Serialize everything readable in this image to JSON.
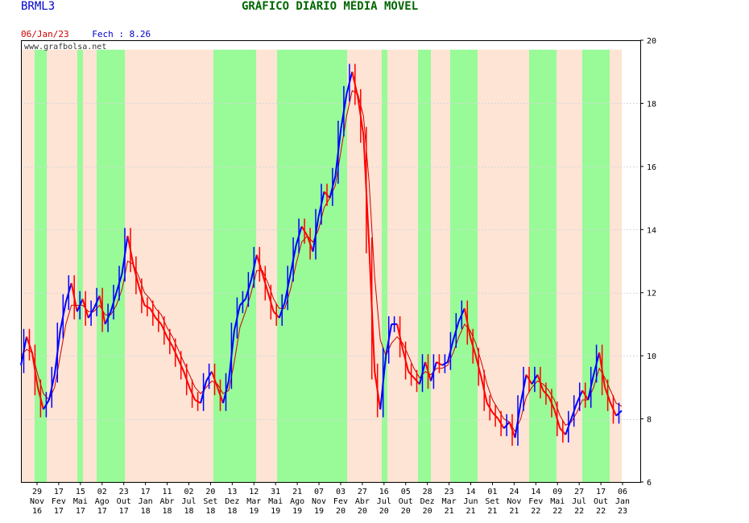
{
  "header": {
    "ticker": "BRML3",
    "title": "GRÁFICO DIÁRIO MÉDIA MÓVEL",
    "date": "06/Jan/23",
    "close_text": "Fech : 8.26",
    "watermark": "www.grafbolsa.net"
  },
  "colors": {
    "band_up": "#98fb98",
    "band_down": "#fde4d4",
    "price_up": "#0000ff",
    "price_down": "#ff0000",
    "ma_line": "#cc0000"
  },
  "chart_data": {
    "type": "line",
    "ylim": [
      6,
      20
    ],
    "yticks": [
      6,
      8,
      10,
      12,
      14,
      16,
      18,
      20
    ],
    "grid": true,
    "x_tick_labels": [
      {
        "day": "29",
        "mon": "Nov",
        "yr": "16"
      },
      {
        "day": "17",
        "mon": "Fev",
        "yr": "17"
      },
      {
        "day": "15",
        "mon": "Mai",
        "yr": "17"
      },
      {
        "day": "02",
        "mon": "Ago",
        "yr": "17"
      },
      {
        "day": "23",
        "mon": "Out",
        "yr": "17"
      },
      {
        "day": "17",
        "mon": "Jan",
        "yr": "18"
      },
      {
        "day": "11",
        "mon": "Abr",
        "yr": "18"
      },
      {
        "day": "02",
        "mon": "Jul",
        "yr": "18"
      },
      {
        "day": "20",
        "mon": "Set",
        "yr": "18"
      },
      {
        "day": "13",
        "mon": "Dez",
        "yr": "18"
      },
      {
        "day": "12",
        "mon": "Mar",
        "yr": "19"
      },
      {
        "day": "31",
        "mon": "Mai",
        "yr": "19"
      },
      {
        "day": "21",
        "mon": "Ago",
        "yr": "19"
      },
      {
        "day": "07",
        "mon": "Nov",
        "yr": "19"
      },
      {
        "day": "03",
        "mon": "Fev",
        "yr": "20"
      },
      {
        "day": "27",
        "mon": "Abr",
        "yr": "20"
      },
      {
        "day": "16",
        "mon": "Jul",
        "yr": "20"
      },
      {
        "day": "05",
        "mon": "Out",
        "yr": "20"
      },
      {
        "day": "28",
        "mon": "Dez",
        "yr": "20"
      },
      {
        "day": "23",
        "mon": "Mar",
        "yr": "21"
      },
      {
        "day": "14",
        "mon": "Jun",
        "yr": "21"
      },
      {
        "day": "01",
        "mon": "Set",
        "yr": "21"
      },
      {
        "day": "24",
        "mon": "Nov",
        "yr": "21"
      },
      {
        "day": "14",
        "mon": "Fev",
        "yr": "22"
      },
      {
        "day": "09",
        "mon": "Mai",
        "yr": "22"
      },
      {
        "day": "27",
        "mon": "Jul",
        "yr": "22"
      },
      {
        "day": "17",
        "mon": "Out",
        "yr": "22"
      },
      {
        "day": "06",
        "mon": "Jan",
        "yr": "23"
      }
    ],
    "regimes": [
      "down",
      "up",
      "down",
      "up",
      "down",
      "up",
      "down",
      "up",
      "down",
      "up",
      "down",
      "up",
      "down",
      "up",
      "down",
      "up",
      "down",
      "up",
      "down",
      "up",
      "down",
      "up",
      "down"
    ],
    "price": [
      9.7,
      10.6,
      10.1,
      9.0,
      8.3,
      8.6,
      9.4,
      10.8,
      11.7,
      12.3,
      11.4,
      11.8,
      11.2,
      11.5,
      11.9,
      11.0,
      11.4,
      12.0,
      12.6,
      13.8,
      12.9,
      12.2,
      11.6,
      11.5,
      11.2,
      11.0,
      10.6,
      10.3,
      9.9,
      9.5,
      9.0,
      8.6,
      8.5,
      9.2,
      9.5,
      9.0,
      8.5,
      9.2,
      10.8,
      11.6,
      11.8,
      12.4,
      13.2,
      12.6,
      12.0,
      11.4,
      11.2,
      11.7,
      12.6,
      13.5,
      14.1,
      13.8,
      13.3,
      14.4,
      15.2,
      15.0,
      15.7,
      17.2,
      18.3,
      19.0,
      18.2,
      17.0,
      13.5,
      9.5,
      8.3,
      10.0,
      11.0,
      11.0,
      10.2,
      9.5,
      9.3,
      9.1,
      9.8,
      9.2,
      9.8,
      9.7,
      9.8,
      10.5,
      11.1,
      11.5,
      10.6,
      10.0,
      9.3,
      8.5,
      8.2,
      8.0,
      7.7,
      7.9,
      7.4,
      8.5,
      9.4,
      9.1,
      9.4,
      8.9,
      8.7,
      8.3,
      7.7,
      7.5,
      8.0,
      8.5,
      8.9,
      8.6,
      9.4,
      10.1,
      9.0,
      8.5,
      8.1,
      8.26
    ],
    "ma": [
      10.0,
      10.2,
      10.1,
      9.4,
      8.8,
      8.6,
      9.0,
      10.0,
      11.0,
      11.6,
      11.6,
      11.6,
      11.4,
      11.4,
      11.6,
      11.3,
      11.3,
      11.6,
      12.1,
      13.0,
      12.9,
      12.5,
      12.0,
      11.8,
      11.5,
      11.3,
      10.9,
      10.6,
      10.2,
      9.8,
      9.4,
      9.0,
      8.8,
      9.0,
      9.2,
      9.1,
      8.8,
      8.9,
      9.8,
      10.9,
      11.4,
      12.0,
      12.7,
      12.7,
      12.3,
      11.8,
      11.5,
      11.5,
      12.1,
      12.9,
      13.6,
      13.8,
      13.6,
      14.0,
      14.7,
      15.0,
      15.4,
      16.5,
      17.6,
      18.4,
      18.3,
      17.6,
      15.5,
      12.5,
      10.5,
      10.0,
      10.4,
      10.6,
      10.4,
      10.0,
      9.6,
      9.3,
      9.5,
      9.4,
      9.6,
      9.6,
      9.7,
      10.1,
      10.6,
      11.0,
      10.8,
      10.4,
      9.8,
      9.1,
      8.6,
      8.3,
      8.0,
      7.9,
      7.6,
      8.0,
      8.7,
      9.0,
      9.2,
      9.1,
      8.9,
      8.6,
      8.1,
      7.8,
      7.9,
      8.2,
      8.6,
      8.6,
      9.0,
      9.6,
      9.3,
      8.9,
      8.5,
      8.4
    ]
  }
}
